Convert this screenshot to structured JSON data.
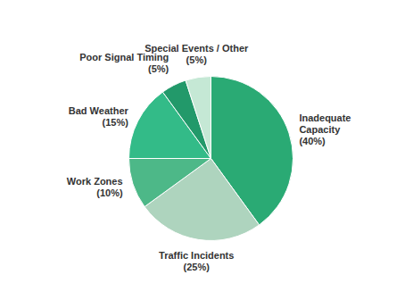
{
  "chart_data": {
    "type": "pie",
    "categories": [
      "Inadequate\nCapacity",
      "Traffic Incidents",
      "Work Zones",
      "Bad Weather",
      "Poor Signal Timing",
      "Special Events / Other"
    ],
    "values": [
      40,
      25,
      10,
      15,
      5,
      5
    ],
    "value_labels": [
      "(40%)",
      "(25%)",
      "(10%)",
      "(15%)",
      "(5%)",
      "(5%)"
    ],
    "data_labels": true,
    "colors": [
      "#2aaa74",
      "#aed4be",
      "#4db888",
      "#33bb88",
      "#22996a",
      "#c5e8d5"
    ]
  }
}
